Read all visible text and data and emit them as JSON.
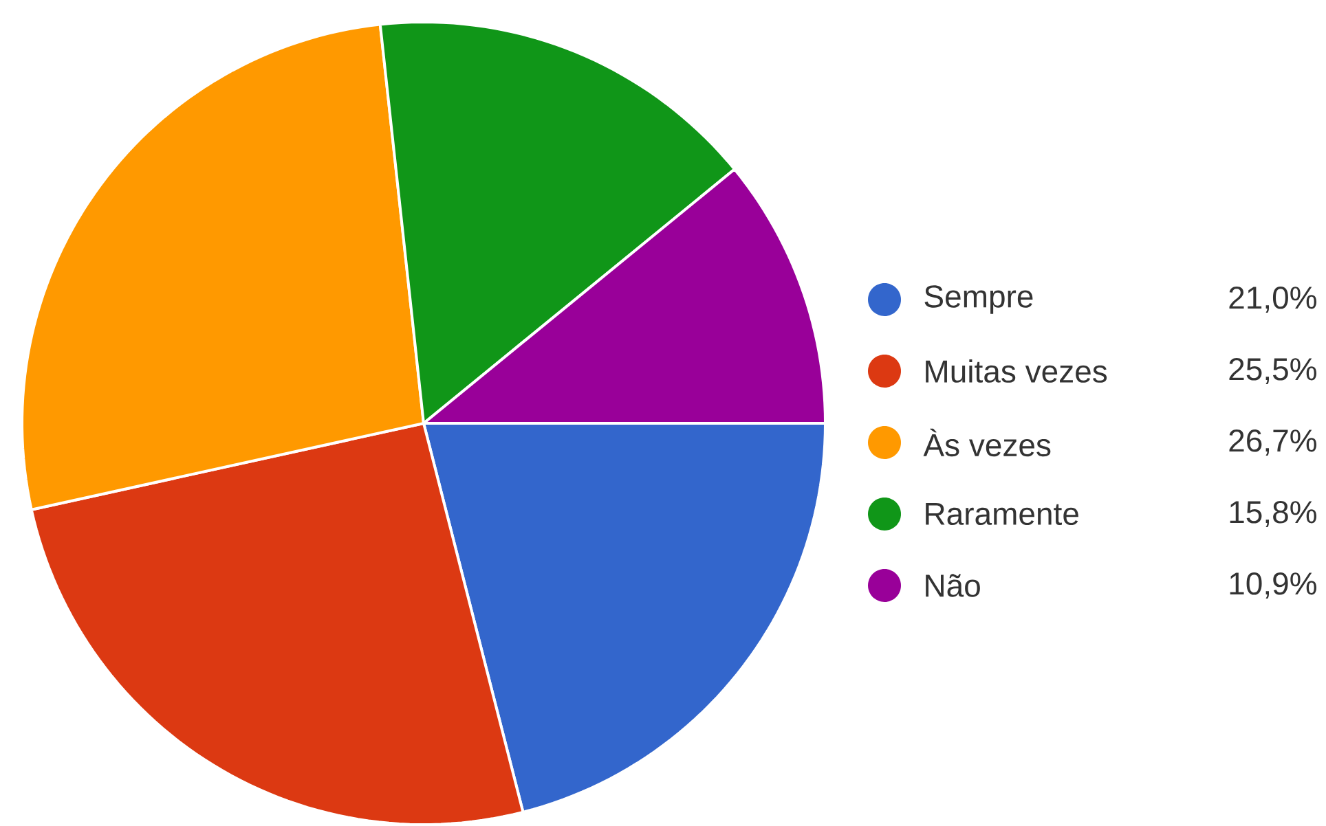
{
  "chart_data": {
    "type": "pie",
    "categories": [
      "Sempre",
      "Muitas vezes",
      "Às vezes",
      "Raramente",
      "Não"
    ],
    "values": [
      21.0,
      25.5,
      26.7,
      15.8,
      10.9
    ],
    "value_labels": [
      "21,0%",
      "25,5%",
      "26,7%",
      "15,8%",
      "10,9%"
    ],
    "colors": [
      "#3366cc",
      "#dc3912",
      "#ff9900",
      "#109618",
      "#990099"
    ],
    "legend": "right"
  }
}
